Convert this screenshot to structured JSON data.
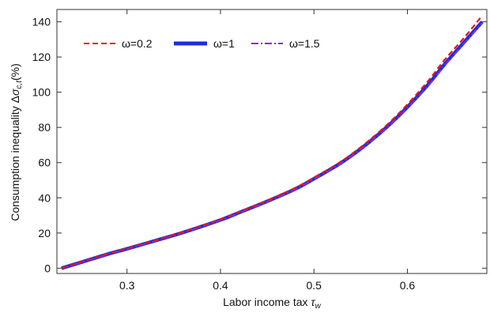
{
  "chart_data": {
    "type": "line",
    "xlabel": "Labor income tax",
    "xlabel_symbol": "τ",
    "xlabel_subscript": "w",
    "ylabel": "Consumption inequality Δ",
    "ylabel_symbol": "σ",
    "ylabel_subscript": "c,t",
    "ylabel_suffix": "(%)",
    "xlim": [
      0.225,
      0.685
    ],
    "ylim": [
      -3,
      147
    ],
    "xticks": [
      "0.3",
      "0.4",
      "0.5",
      "0.6"
    ],
    "xtick_values": [
      0.3,
      0.4,
      0.5,
      0.6
    ],
    "yticks": [
      "0",
      "20",
      "40",
      "60",
      "80",
      "100",
      "120",
      "140"
    ],
    "ytick_values": [
      0,
      20,
      40,
      60,
      80,
      100,
      120,
      140
    ],
    "grid": false,
    "legend_position": "top-left",
    "x": [
      0.23,
      0.25,
      0.28,
      0.3,
      0.33,
      0.36,
      0.4,
      0.42,
      0.45,
      0.48,
      0.5,
      0.53,
      0.56,
      0.59,
      0.62,
      0.64,
      0.66,
      0.68
    ],
    "series": [
      {
        "name": "ω=0.2",
        "color": "#e8141b",
        "style": "dashed",
        "values": [
          0,
          3.3,
          8.3,
          11.2,
          15.8,
          20.6,
          27.8,
          32.0,
          38.5,
          45.7,
          51.5,
          61.0,
          73.0,
          87.5,
          105.0,
          118.5,
          130.5,
          143.5
        ]
      },
      {
        "name": "ω=1",
        "color": "#1f2ce0",
        "style": "solid-thick",
        "values": [
          0,
          3.2,
          8.1,
          11.0,
          15.6,
          20.3,
          27.4,
          31.6,
          38.0,
          45.0,
          50.8,
          60.2,
          72.0,
          86.2,
          103.0,
          116.0,
          128.0,
          140.0
        ]
      },
      {
        "name": "ω=1.5",
        "color": "#7b35c9",
        "style": "dashdot",
        "values": [
          0,
          3.1,
          8.0,
          10.9,
          15.5,
          20.2,
          27.3,
          31.4,
          37.8,
          44.8,
          50.5,
          59.9,
          71.6,
          85.7,
          102.3,
          115.2,
          127.2,
          139.3
        ]
      }
    ]
  }
}
